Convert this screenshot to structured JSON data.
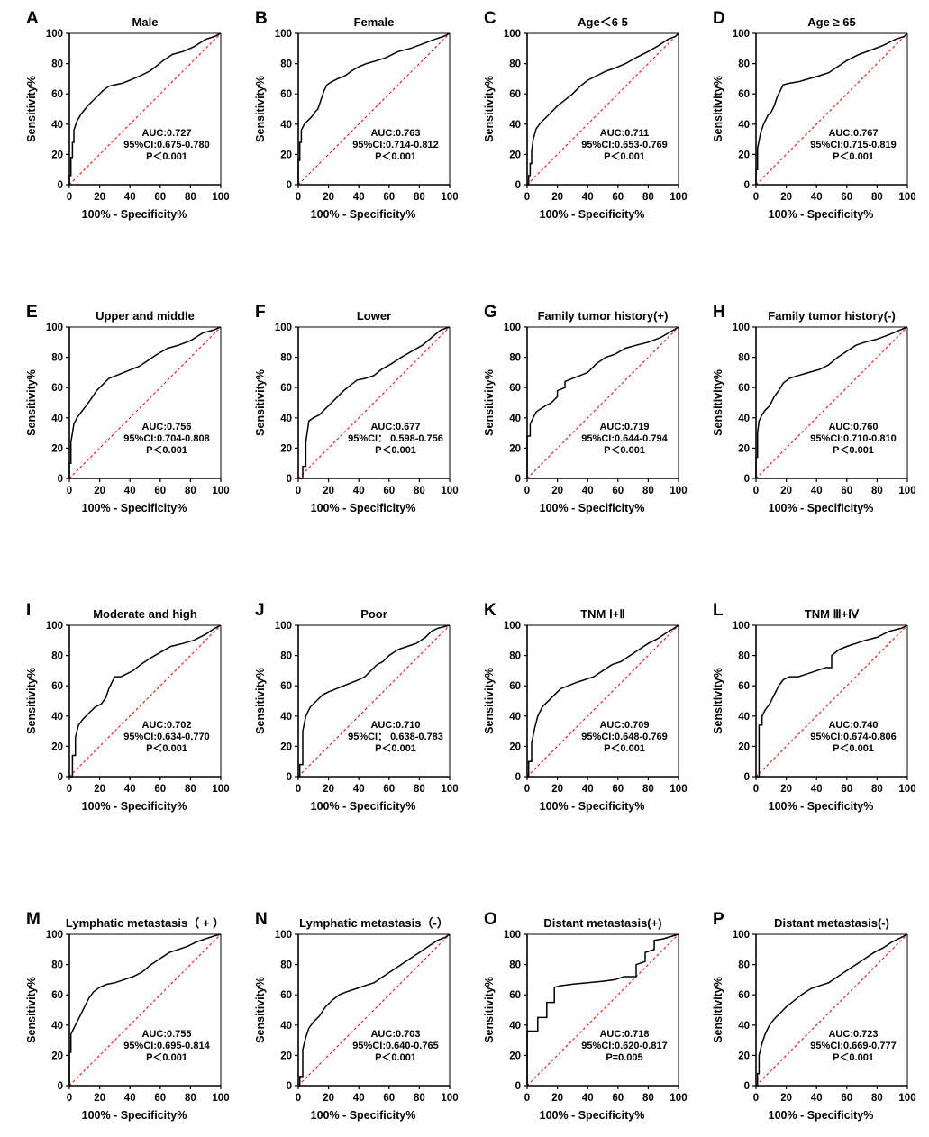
{
  "figure": {
    "x_axis_label": "100% - Specificity%",
    "y_axis_label": "Sensitivity%",
    "colors": {
      "roc": "#000000",
      "reference": "#e8231f"
    }
  },
  "chart_data": [
    {
      "type": "line",
      "letter": "A",
      "title": "Male",
      "xlabel": "100% - Specificity%",
      "ylabel": "Sensitivity%",
      "xlim": [
        0,
        100
      ],
      "ylim": [
        0,
        100
      ],
      "xticks": [
        "0",
        "20",
        "40",
        "60",
        "80",
        "100"
      ],
      "yticks": [
        "0",
        "20",
        "40",
        "60",
        "80",
        "100"
      ],
      "auc_text": "AUC:0.727",
      "ci_text": "95%CI:0.675-0.780",
      "p_text": "P＜0.001",
      "x": [
        0,
        0,
        1,
        1,
        2,
        2,
        3,
        3,
        5,
        8,
        12,
        18,
        22,
        26,
        30,
        35,
        40,
        47,
        53,
        57,
        62,
        68,
        75,
        82,
        90,
        96,
        100
      ],
      "y": [
        0,
        6,
        6,
        18,
        18,
        28,
        28,
        36,
        42,
        47,
        52,
        58,
        62,
        65,
        66,
        67,
        69,
        72,
        75,
        78,
        82,
        86,
        88,
        91,
        96,
        98,
        100
      ]
    },
    {
      "type": "line",
      "letter": "B",
      "title": "Female",
      "xlabel": "100% - Specificity%",
      "ylabel": "Sensitivity%",
      "xlim": [
        0,
        100
      ],
      "ylim": [
        0,
        100
      ],
      "xticks": [
        "0",
        "20",
        "40",
        "60",
        "80",
        "100"
      ],
      "yticks": [
        "0",
        "20",
        "40",
        "60",
        "80",
        "100"
      ],
      "auc_text": "AUC:0.763",
      "ci_text": "95%CI:0.714-0.812",
      "p_text": "P＜0.001",
      "x": [
        0,
        0,
        1,
        1,
        2,
        2,
        4,
        6,
        9,
        11,
        13,
        15,
        17,
        19,
        22,
        26,
        31,
        35,
        40,
        45,
        52,
        58,
        66,
        74,
        82,
        90,
        96,
        100
      ],
      "y": [
        0,
        16,
        16,
        28,
        28,
        36,
        40,
        42,
        45,
        48,
        50,
        56,
        62,
        66,
        68,
        70,
        72,
        75,
        78,
        80,
        82,
        84,
        88,
        90,
        93,
        96,
        98,
        100
      ]
    },
    {
      "type": "line",
      "letter": "C",
      "title": "Age＜6 5",
      "xlabel": "100% - Specificity%",
      "ylabel": "Sensitivity%",
      "xlim": [
        0,
        100
      ],
      "ylim": [
        0,
        100
      ],
      "xticks": [
        "0",
        "20",
        "40",
        "60",
        "80",
        "100"
      ],
      "yticks": [
        "0",
        "20",
        "40",
        "60",
        "80",
        "100"
      ],
      "auc_text": "AUC:0.711",
      "ci_text": "95%CI:0.653-0.769",
      "p_text": "P＜0.001",
      "x": [
        0,
        1,
        1,
        2,
        2,
        3,
        3,
        4,
        6,
        9,
        12,
        16,
        20,
        25,
        30,
        35,
        40,
        46,
        52,
        58,
        65,
        72,
        80,
        87,
        93,
        98,
        100
      ],
      "y": [
        0,
        0,
        6,
        6,
        14,
        14,
        22,
        30,
        37,
        41,
        44,
        48,
        52,
        56,
        60,
        65,
        69,
        72,
        75,
        77,
        80,
        84,
        88,
        92,
        96,
        98,
        100
      ]
    },
    {
      "type": "line",
      "letter": "D",
      "title": "Age ≥ 65",
      "xlabel": "100% - Specificity%",
      "ylabel": "Sensitivity%",
      "xlim": [
        0,
        100
      ],
      "ylim": [
        0,
        100
      ],
      "xticks": [
        "0",
        "20",
        "40",
        "60",
        "80",
        "100"
      ],
      "yticks": [
        "0",
        "20",
        "40",
        "60",
        "80",
        "100"
      ],
      "auc_text": "AUC:0.767",
      "ci_text": "95%CI:0.715-0.819",
      "p_text": "P＜0.001",
      "x": [
        0,
        0,
        1,
        1,
        3,
        5,
        8,
        10,
        12,
        14,
        16,
        18,
        22,
        28,
        35,
        42,
        48,
        54,
        60,
        68,
        76,
        84,
        92,
        98,
        100
      ],
      "y": [
        0,
        10,
        10,
        24,
        34,
        40,
        46,
        48,
        52,
        58,
        62,
        66,
        67,
        68,
        70,
        72,
        74,
        78,
        82,
        86,
        89,
        92,
        96,
        98,
        100
      ]
    },
    {
      "type": "line",
      "letter": "E",
      "title": "Upper and middle",
      "xlabel": "100% - Specificity%",
      "ylabel": "Sensitivity%",
      "xlim": [
        0,
        100
      ],
      "ylim": [
        0,
        100
      ],
      "xticks": [
        "0",
        "20",
        "40",
        "60",
        "80",
        "100"
      ],
      "yticks": [
        "0",
        "20",
        "40",
        "60",
        "80",
        "100"
      ],
      "auc_text": "AUC:0.756",
      "ci_text": "95%CI:0.704-0.808",
      "p_text": "P＜0.001",
      "x": [
        0,
        0,
        1,
        1,
        2,
        3,
        5,
        8,
        11,
        14,
        18,
        22,
        26,
        31,
        36,
        41,
        46,
        52,
        58,
        65,
        72,
        80,
        88,
        95,
        100
      ],
      "y": [
        0,
        10,
        10,
        24,
        30,
        36,
        40,
        44,
        48,
        52,
        58,
        62,
        66,
        68,
        70,
        72,
        74,
        78,
        82,
        86,
        88,
        91,
        96,
        98,
        100
      ]
    },
    {
      "type": "line",
      "letter": "F",
      "title": "Lower",
      "xlabel": "100% - Specificity%",
      "ylabel": "Sensitivity%",
      "xlim": [
        0,
        100
      ],
      "ylim": [
        0,
        100
      ],
      "xticks": [
        "0",
        "20",
        "40",
        "60",
        "80",
        "100"
      ],
      "yticks": [
        "0",
        "20",
        "40",
        "60",
        "80",
        "100"
      ],
      "auc_text": "AUC:0.677",
      "ci_text": "95%CI： 0.598-0.756",
      "p_text": "P＜0.001",
      "x": [
        0,
        3,
        3,
        5,
        5,
        7,
        10,
        14,
        18,
        22,
        26,
        30,
        35,
        39,
        44,
        50,
        55,
        62,
        68,
        75,
        82,
        88,
        94,
        100
      ],
      "y": [
        0,
        0,
        8,
        8,
        24,
        38,
        40,
        42,
        46,
        50,
        54,
        58,
        62,
        65,
        66,
        68,
        72,
        76,
        80,
        84,
        88,
        93,
        98,
        100
      ]
    },
    {
      "type": "line",
      "letter": "G",
      "title": "Family tumor history(+)",
      "xlabel": "100% - Specificity%",
      "ylabel": "Sensitivity%",
      "xlim": [
        0,
        100
      ],
      "ylim": [
        0,
        100
      ],
      "xticks": [
        "0",
        "20",
        "40",
        "60",
        "80",
        "100"
      ],
      "yticks": [
        "0",
        "20",
        "40",
        "60",
        "80",
        "100"
      ],
      "auc_text": "AUC:0.719",
      "ci_text": "95%CI:0.644-0.794",
      "p_text": "P＜0.001",
      "x": [
        0,
        0,
        2,
        2,
        4,
        6,
        9,
        12,
        16,
        20,
        20,
        25,
        25,
        30,
        35,
        40,
        46,
        52,
        58,
        65,
        72,
        80,
        88,
        95,
        100
      ],
      "y": [
        0,
        28,
        28,
        36,
        40,
        44,
        46,
        48,
        50,
        54,
        58,
        60,
        64,
        66,
        68,
        70,
        76,
        80,
        82,
        86,
        88,
        90,
        93,
        97,
        100
      ]
    },
    {
      "type": "line",
      "letter": "H",
      "title": "Family tumor history(-)",
      "xlabel": "100% - Specificity%",
      "ylabel": "Sensitivity%",
      "xlim": [
        0,
        100
      ],
      "ylim": [
        0,
        100
      ],
      "xticks": [
        "0",
        "20",
        "40",
        "60",
        "80",
        "100"
      ],
      "yticks": [
        "0",
        "20",
        "40",
        "60",
        "80",
        "100"
      ],
      "auc_text": "AUC:0.760",
      "ci_text": "95%CI:0.710-0.810",
      "p_text": "P＜0.001",
      "x": [
        0,
        0,
        1,
        1,
        2,
        4,
        6,
        9,
        12,
        15,
        18,
        22,
        28,
        35,
        42,
        48,
        54,
        60,
        66,
        72,
        80,
        88,
        95,
        100
      ],
      "y": [
        0,
        14,
        14,
        30,
        38,
        42,
        45,
        48,
        54,
        58,
        63,
        66,
        68,
        70,
        72,
        75,
        80,
        84,
        88,
        90,
        92,
        95,
        98,
        100
      ]
    },
    {
      "type": "line",
      "letter": "I",
      "title": "Moderate and high",
      "xlabel": "100% - Specificity%",
      "ylabel": "Sensitivity%",
      "xlim": [
        0,
        100
      ],
      "ylim": [
        0,
        100
      ],
      "xticks": [
        "0",
        "20",
        "40",
        "60",
        "80",
        "100"
      ],
      "yticks": [
        "0",
        "20",
        "40",
        "60",
        "80",
        "100"
      ],
      "auc_text": "AUC:0.702",
      "ci_text": "95%CI:0.634-0.770",
      "p_text": "P＜0.001",
      "x": [
        0,
        2,
        2,
        4,
        4,
        6,
        9,
        13,
        17,
        21,
        24,
        26,
        28,
        30,
        34,
        38,
        42,
        47,
        53,
        60,
        67,
        75,
        82,
        90,
        96,
        100
      ],
      "y": [
        0,
        0,
        14,
        14,
        26,
        34,
        38,
        42,
        46,
        48,
        52,
        58,
        62,
        66,
        66,
        68,
        70,
        74,
        78,
        82,
        86,
        88,
        90,
        94,
        98,
        100
      ]
    },
    {
      "type": "line",
      "letter": "J",
      "title": "Poor",
      "xlabel": "100% - Specificity%",
      "ylabel": "Sensitivity%",
      "xlim": [
        0,
        100
      ],
      "ylim": [
        0,
        100
      ],
      "xticks": [
        "0",
        "20",
        "40",
        "60",
        "80",
        "100"
      ],
      "yticks": [
        "0",
        "20",
        "40",
        "60",
        "80",
        "100"
      ],
      "auc_text": "AUC:0.710",
      "ci_text": "95%CI： 0.638-0.783",
      "p_text": "P＜0.001",
      "x": [
        0,
        1,
        1,
        3,
        3,
        5,
        8,
        12,
        16,
        20,
        25,
        30,
        35,
        40,
        44,
        48,
        52,
        56,
        60,
        66,
        72,
        78,
        84,
        88,
        92,
        100
      ],
      "y": [
        0,
        0,
        8,
        8,
        30,
        40,
        46,
        50,
        54,
        56,
        58,
        60,
        62,
        64,
        66,
        70,
        74,
        76,
        80,
        84,
        86,
        88,
        92,
        96,
        98,
        100
      ]
    },
    {
      "type": "line",
      "letter": "K",
      "title": "TNM Ⅰ+Ⅱ",
      "xlabel": "100% - Specificity%",
      "ylabel": "Sensitivity%",
      "xlim": [
        0,
        100
      ],
      "ylim": [
        0,
        100
      ],
      "xticks": [
        "0",
        "20",
        "40",
        "60",
        "80",
        "100"
      ],
      "yticks": [
        "0",
        "20",
        "40",
        "60",
        "80",
        "100"
      ],
      "auc_text": "AUC:0.709",
      "ci_text": "95%CI:0.648-0.769",
      "p_text": "P＜0.001",
      "x": [
        0,
        1,
        1,
        3,
        3,
        5,
        7,
        10,
        14,
        18,
        22,
        27,
        32,
        38,
        44,
        50,
        56,
        62,
        68,
        74,
        80,
        86,
        92,
        97,
        100
      ],
      "y": [
        0,
        0,
        10,
        10,
        22,
        32,
        40,
        46,
        50,
        54,
        58,
        60,
        62,
        64,
        66,
        70,
        74,
        76,
        80,
        84,
        88,
        91,
        95,
        98,
        100
      ]
    },
    {
      "type": "line",
      "letter": "L",
      "title": "TNM Ⅲ+Ⅳ",
      "xlabel": "100% - Specificity%",
      "ylabel": "Sensitivity%",
      "xlim": [
        0,
        100
      ],
      "ylim": [
        0,
        100
      ],
      "xticks": [
        "0",
        "20",
        "40",
        "60",
        "80",
        "100"
      ],
      "yticks": [
        "0",
        "20",
        "40",
        "60",
        "80",
        "100"
      ],
      "auc_text": "AUC:0.740",
      "ci_text": "95%CI:0.674-0.806",
      "p_text": "P＜0.001",
      "x": [
        0,
        2,
        2,
        4,
        4,
        6,
        9,
        12,
        15,
        18,
        22,
        28,
        34,
        40,
        46,
        50,
        50,
        55,
        60,
        66,
        72,
        80,
        88,
        96,
        100
      ],
      "y": [
        0,
        0,
        34,
        34,
        40,
        44,
        48,
        54,
        60,
        64,
        66,
        66,
        68,
        70,
        72,
        72,
        80,
        84,
        86,
        88,
        90,
        92,
        96,
        98,
        100
      ]
    },
    {
      "type": "line",
      "letter": "M",
      "title": "Lymphatic metastasis（ + ）",
      "xlabel": "100% - Specificity%",
      "ylabel": "Sensitivity%",
      "xlim": [
        0,
        100
      ],
      "ylim": [
        0,
        100
      ],
      "xticks": [
        "0",
        "20",
        "40",
        "60",
        "80",
        "100"
      ],
      "yticks": [
        "0",
        "20",
        "40",
        "60",
        "80",
        "100"
      ],
      "auc_text": "AUC:0.755",
      "ci_text": "95%CI:0.695-0.814",
      "p_text": "P＜0.001",
      "x": [
        0,
        0,
        1,
        1,
        3,
        5,
        7,
        10,
        13,
        16,
        20,
        25,
        30,
        36,
        42,
        48,
        54,
        60,
        66,
        72,
        78,
        84,
        90,
        96,
        100
      ],
      "y": [
        0,
        22,
        22,
        34,
        38,
        42,
        46,
        52,
        58,
        62,
        65,
        67,
        68,
        70,
        72,
        75,
        80,
        84,
        88,
        90,
        92,
        95,
        97,
        99,
        100
      ]
    },
    {
      "type": "line",
      "letter": "N",
      "title": "Lymphatic metastasis（-）",
      "xlabel": "100% - Specificity%",
      "ylabel": "Sensitivity%",
      "xlim": [
        0,
        100
      ],
      "ylim": [
        0,
        100
      ],
      "xticks": [
        "0",
        "20",
        "40",
        "60",
        "80",
        "100"
      ],
      "yticks": [
        "0",
        "20",
        "40",
        "60",
        "80",
        "100"
      ],
      "auc_text": "AUC:0.703",
      "ci_text": "95%CI:0.640-0.765",
      "p_text": "P＜0.001",
      "x": [
        0,
        1,
        1,
        3,
        3,
        5,
        7,
        10,
        14,
        18,
        22,
        27,
        32,
        38,
        44,
        50,
        56,
        62,
        68,
        74,
        80,
        86,
        92,
        97,
        100
      ],
      "y": [
        0,
        0,
        6,
        6,
        24,
        32,
        38,
        42,
        46,
        52,
        56,
        60,
        62,
        64,
        66,
        68,
        72,
        76,
        80,
        84,
        88,
        92,
        96,
        98,
        100
      ]
    },
    {
      "type": "line",
      "letter": "O",
      "title": "Distant metastasis(+)",
      "xlabel": "100% - Specificity%",
      "ylabel": "Sensitivity%",
      "xlim": [
        0,
        100
      ],
      "ylim": [
        0,
        100
      ],
      "xticks": [
        "0",
        "20",
        "40",
        "60",
        "80",
        "100"
      ],
      "yticks": [
        "0",
        "20",
        "40",
        "60",
        "80",
        "100"
      ],
      "auc_text": "AUC:0.718",
      "ci_text": "95%CI:0.620-0.817",
      "p_text": "P=0.005",
      "x": [
        0,
        0,
        7,
        7,
        13,
        13,
        18,
        18,
        22,
        30,
        40,
        50,
        58,
        64,
        66,
        72,
        72,
        78,
        78,
        84,
        84,
        90,
        100
      ],
      "y": [
        0,
        36,
        36,
        45,
        45,
        55,
        55,
        65,
        66,
        67,
        68,
        69,
        70,
        72,
        72,
        72,
        80,
        82,
        88,
        90,
        96,
        97,
        100
      ]
    },
    {
      "type": "line",
      "letter": "P",
      "title": "Distant metastasis(-)",
      "xlabel": "100% - Specificity%",
      "ylabel": "Sensitivity%",
      "xlim": [
        0,
        100
      ],
      "ylim": [
        0,
        100
      ],
      "xticks": [
        "0",
        "20",
        "40",
        "60",
        "80",
        "100"
      ],
      "yticks": [
        "0",
        "20",
        "40",
        "60",
        "80",
        "100"
      ],
      "auc_text": "AUC:0.723",
      "ci_text": "95%CI:0.669-0.777",
      "p_text": "P＜0.001",
      "x": [
        0,
        1,
        1,
        2,
        2,
        4,
        6,
        9,
        12,
        16,
        20,
        25,
        30,
        36,
        42,
        48,
        54,
        60,
        66,
        72,
        78,
        84,
        90,
        96,
        100
      ],
      "y": [
        0,
        0,
        8,
        8,
        20,
        28,
        34,
        40,
        44,
        48,
        52,
        56,
        60,
        64,
        66,
        68,
        72,
        76,
        80,
        84,
        88,
        91,
        95,
        98,
        100
      ]
    }
  ]
}
